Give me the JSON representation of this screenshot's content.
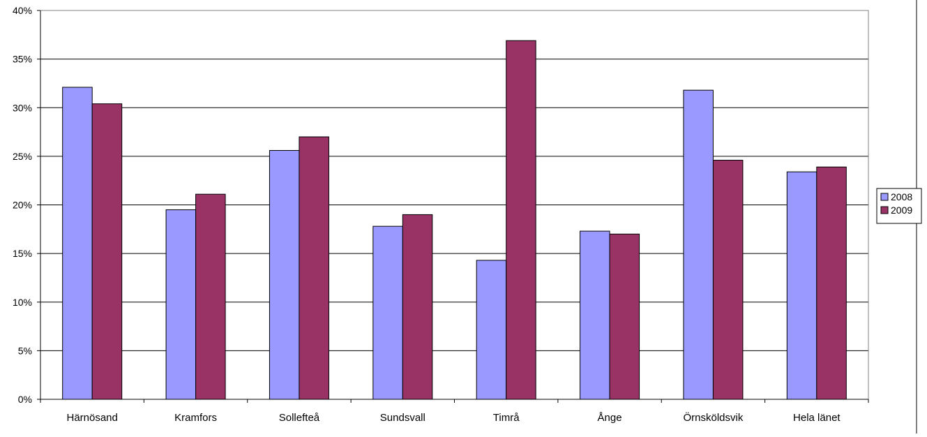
{
  "chart_data": {
    "type": "bar",
    "title": "",
    "xlabel": "",
    "ylabel": "",
    "categories": [
      "Härnösand",
      "Kramfors",
      "Sollefteå",
      "Sundsvall",
      "Timrå",
      "Ånge",
      "Örnsköldsvik",
      "Hela länet"
    ],
    "series": [
      {
        "name": "2008",
        "color": "#9999ff",
        "values": [
          32.1,
          19.5,
          25.6,
          17.8,
          14.3,
          17.3,
          31.8,
          23.4
        ]
      },
      {
        "name": "2009",
        "color": "#993366",
        "values": [
          30.4,
          21.1,
          27.0,
          19.0,
          36.9,
          17.0,
          24.6,
          23.9
        ]
      }
    ],
    "ylim": [
      0,
      40
    ],
    "y_ticks": [
      "0%",
      "5%",
      "10%",
      "15%",
      "20%",
      "25%",
      "30%",
      "35%",
      "40%"
    ],
    "grid": true,
    "legend_position": "right"
  }
}
